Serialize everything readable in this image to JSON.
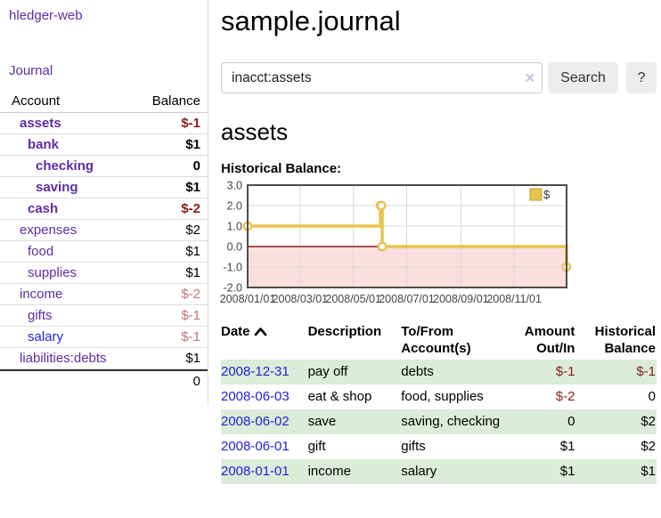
{
  "app": {
    "title": "hledger-web"
  },
  "sidebar": {
    "journal_link": "Journal",
    "accounts": {
      "headers": {
        "account": "Account",
        "balance": "Balance"
      },
      "rows": [
        {
          "name": "assets",
          "balance": "$-1"
        },
        {
          "name": "bank",
          "balance": "$1"
        },
        {
          "name": "checking",
          "balance": "0"
        },
        {
          "name": "saving",
          "balance": "$1"
        },
        {
          "name": "cash",
          "balance": "$-2"
        },
        {
          "name": "expenses",
          "balance": "$2"
        },
        {
          "name": "food",
          "balance": "$1"
        },
        {
          "name": "supplies",
          "balance": "$1"
        },
        {
          "name": "income",
          "balance": "$-2"
        },
        {
          "name": "gifts",
          "balance": "$-1"
        },
        {
          "name": "salary",
          "balance": "$-1"
        },
        {
          "name": "liabilities:debts",
          "balance": "$1"
        }
      ],
      "total": "0"
    }
  },
  "main": {
    "title": "sample.journal",
    "search": {
      "value": "inacct:assets",
      "clear_icon": "×",
      "button_label": "Search",
      "help_label": "?"
    },
    "account_heading": "assets",
    "chart_heading": "Historical Balance:"
  },
  "chart_data": {
    "type": "line",
    "title": "Historical Balance",
    "step": true,
    "series": [
      {
        "name": "$",
        "color": "#e8c34e",
        "points": [
          [
            "2008-01-01",
            1
          ],
          [
            "2008-06-01",
            2
          ],
          [
            "2008-06-02",
            2
          ],
          [
            "2008-06-03",
            0
          ],
          [
            "2008-12-31",
            -1
          ]
        ]
      }
    ],
    "x_domain": [
      "2008-01-01",
      "2008-12-31"
    ],
    "x_ticks": [
      "2008/01/01",
      "2008/03/01",
      "2008/05/01",
      "2008/07/01",
      "2008/09/01",
      "2008/11/01"
    ],
    "y_ticks": [
      "3.0",
      "2.0",
      "1.0",
      "0.0",
      "-1.0",
      "-2.0"
    ],
    "ylim": [
      -2,
      3
    ],
    "legend_position": "top-right",
    "legend_label": "$",
    "grid": true,
    "negative_region_color": "#fbdede",
    "zero_line_color": "#8b1d1d"
  },
  "register": {
    "headers": {
      "date": "Date",
      "sort_icon": "chevron-up",
      "description": "Description",
      "accounts": "To/From Account(s)",
      "amount": "Amount Out/In",
      "balance": "Historical Balance"
    },
    "rows": [
      {
        "date": "2008-12-31",
        "description": "pay off",
        "accounts": "debts",
        "amount": "$-1",
        "balance": "$-1"
      },
      {
        "date": "2008-06-03",
        "description": "eat & shop",
        "accounts": "food, supplies",
        "amount": "$-2",
        "balance": "0"
      },
      {
        "date": "2008-06-02",
        "description": "save",
        "accounts": "saving, checking",
        "amount": "0",
        "balance": "$2"
      },
      {
        "date": "2008-06-01",
        "description": "gift",
        "accounts": "gifts",
        "amount": "$1",
        "balance": "$2"
      },
      {
        "date": "2008-01-01",
        "description": "income",
        "accounts": "salary",
        "amount": "$1",
        "balance": "$1"
      }
    ]
  }
}
